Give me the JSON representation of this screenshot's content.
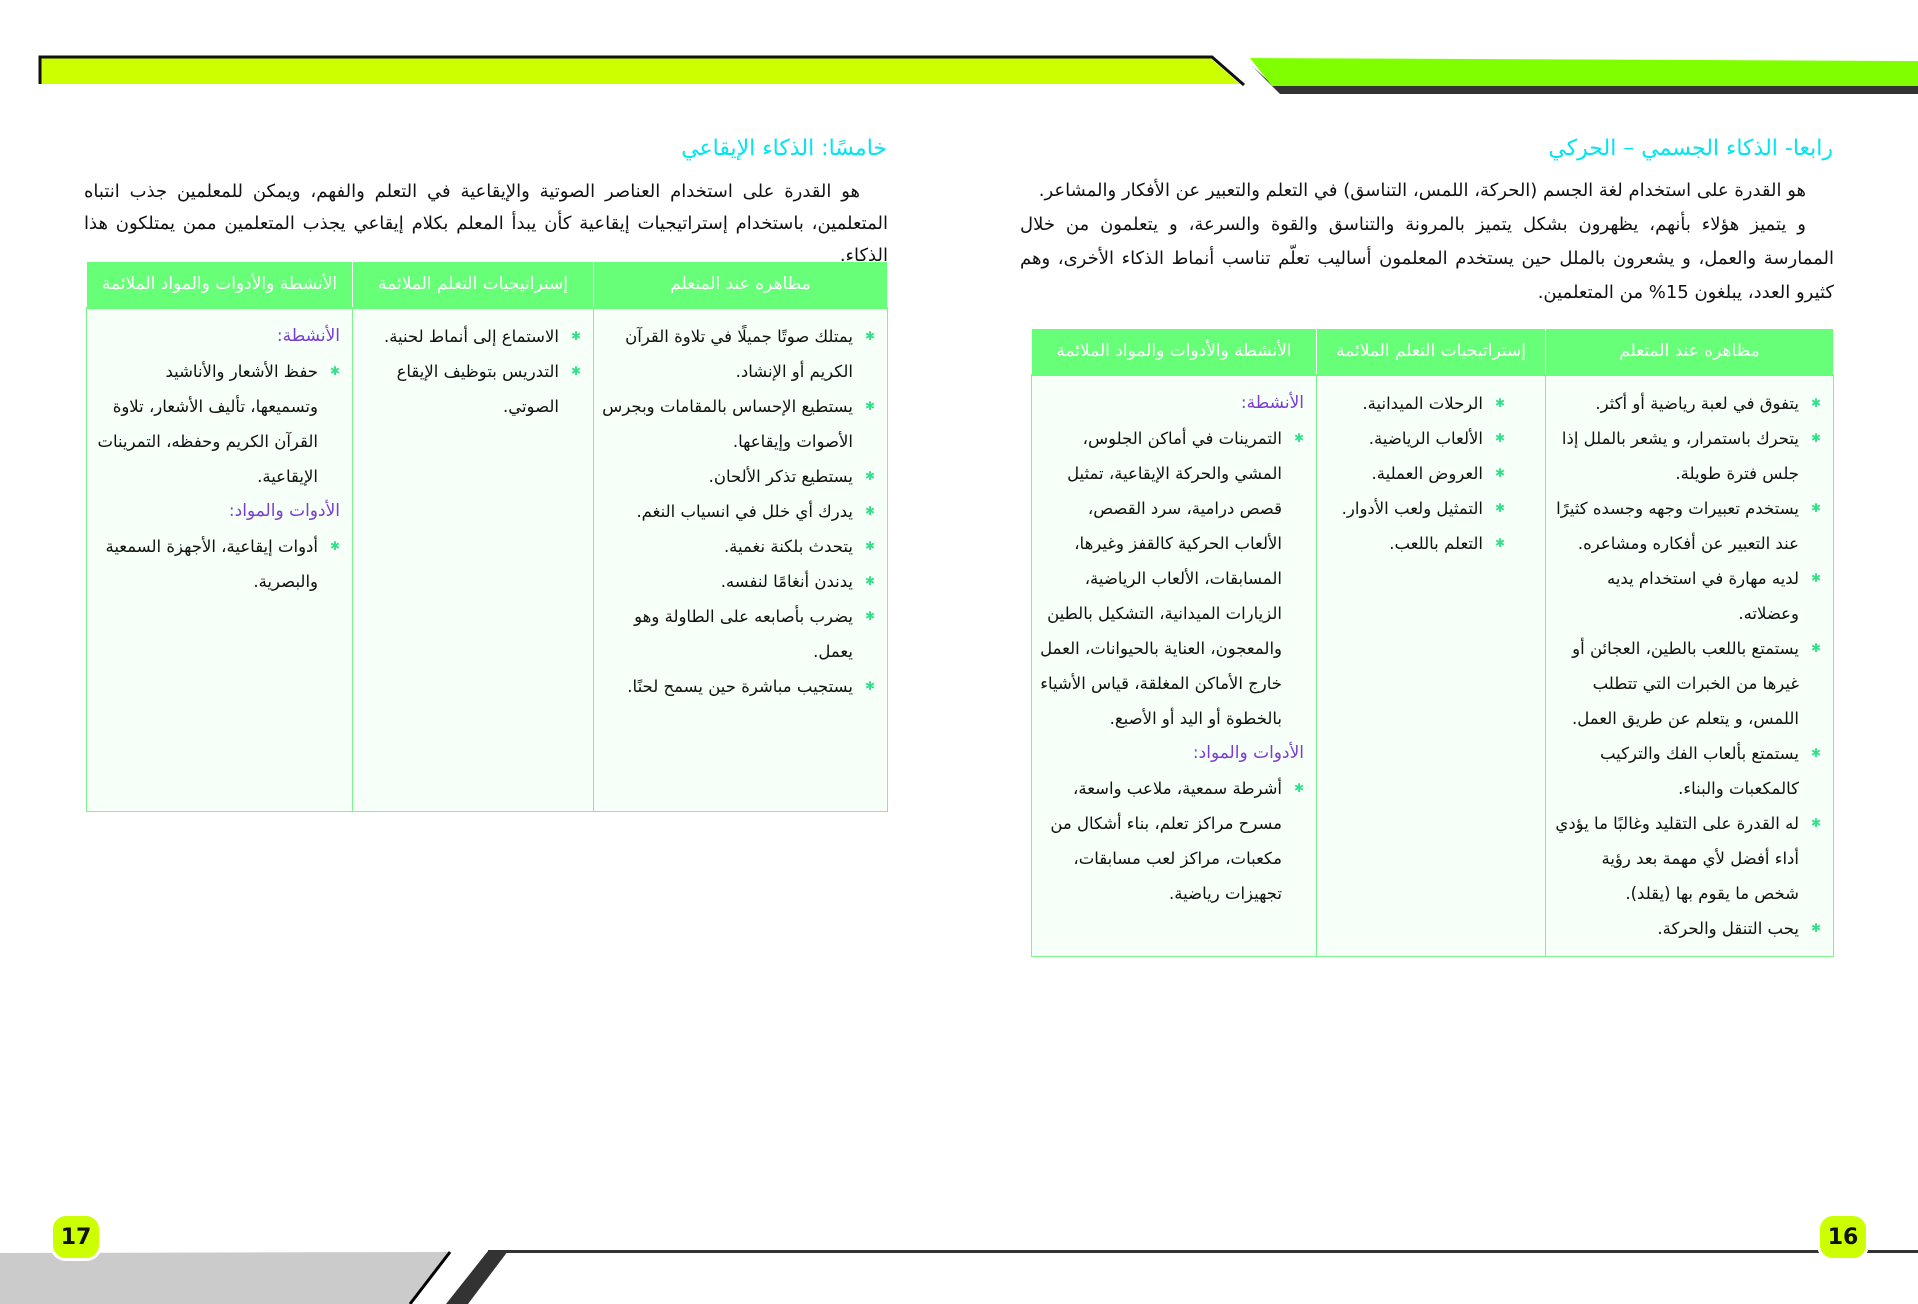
{
  "colors": {
    "heading": "#00e5f0",
    "table_header": "#66ff77",
    "subheading": "#7a3fd0",
    "bullet": "#33e08a",
    "page_badge": "#ccff00",
    "top_bar_left": "#ccff00",
    "top_bar_right": "#80ff00"
  },
  "bullet_icon": "star-bullet-icon",
  "right_page": {
    "page_number": "16",
    "heading": "رابعا- الذكاء الجسمي – الحركي",
    "paragraphs": [
      "هو القدرة على استخدام لغة الجسم (الحركة، اللمس، التناسق) في التعلم والتعبير عن الأفكار والمشاعر.",
      "و يتميز هؤلاء بأنهم، يظهرون بشكل يتميز بالمرونة والتناسق والقوة والسرعة، و يتعلمون من خلال الممارسة والعمل، و يشعرون بالملل حين يستخدم المعلمون أساليب تعلّم تناسب أنماط الذكاء الأخرى، وهم كثيرو العدد، يبلغون 15% من المتعلمين."
    ],
    "table": {
      "headers": [
        "مظاهره عند المتعلم",
        "إستراتيجيات التعلم الملائمة",
        "الأنشطة والأدوات والمواد الملائمة"
      ],
      "traits": [
        "يتفوق في لعبة رياضية أو أكثر.",
        "يتحرك باستمرار، و يشعر بالملل إذا جلس فترة طويلة.",
        "يستخدم تعبيرات وجهه وجسده كثيرًا عند التعبير عن أفكاره ومشاعره.",
        "لديه مهارة في استخدام يديه وعضلاته.",
        "يستمتع باللعب بالطين، العجائن أو غيرها من الخبرات التي تتطلب اللمس، و يتعلم عن طريق العمل.",
        "يستمتع بألعاب الفك والتركيب كالمكعبات والبناء.",
        "له القدرة على التقليد وغالبًا ما يؤدي أداء أفضل لأي مهمة بعد رؤية شخص ما يقوم بها (يقلد).",
        "يحب التنقل والحركة."
      ],
      "strategies": [
        "الرحلات الميدانية.",
        "الألعاب الرياضية.",
        "العروض العملية.",
        "التمثيل ولعب الأدوار.",
        "التعلم باللعب."
      ],
      "activities_label": "الأنشطة:",
      "activities": [
        "التمرينات في أماكن الجلوس، المشي والحركة الإيقاعية، تمثيل قصص درامية، سرد القصص، الألعاب الحركية كالقفز وغيرها، المسابقات، الألعاب الرياضية، الزيارات الميدانية، التشكيل بالطين والمعجون، العناية بالحيوانات، العمل خارج الأماكن المغلقة، قياس الأشياء بالخطوة أو اليد أو الأصبع."
      ],
      "tools_label": "الأدوات والمواد:",
      "tools": [
        "أشرطة سمعية، ملاعب واسعة، مسرح مراكز تعلم، بناء أشكال من مكعبات، مراكز لعب مسابقات، تجهيزات رياضية."
      ]
    }
  },
  "left_page": {
    "page_number": "17",
    "heading": "خامسًا: الذكاء الإيقاعي",
    "paragraphs": [
      "هو القدرة على استخدام العناصر الصوتية والإيقاعية في التعلم والفهم، ويمكن للمعلمين جذب انتباه المتعلمين، باستخدام إستراتيجيات إيقاعية كأن يبدأ المعلم بكلام إيقاعي يجذب المتعلمين ممن يمتلكون هذا الذكاء."
    ],
    "table": {
      "headers": [
        "مظاهره عند المتعلم",
        "إستراتيجيات التعلم الملائمة",
        "الأنشطة والأدوات والمواد الملائمة"
      ],
      "traits": [
        "يمتلك صوتًا جميلًا في تلاوة القرآن الكريم أو الإنشاد.",
        "يستطيع الإحساس بالمقامات وبجرس الأصوات وإيقاعها.",
        "يستطيع تذكر الألحان.",
        "يدرك أي خلل في انسياب النغم.",
        "يتحدث بلكنة نغمية.",
        "يدندن أنغامًا لنفسه.",
        "يضرب بأصابعه على الطاولة وهو يعمل.",
        "يستجيب مباشرة حين يسمح لحنًا."
      ],
      "strategies": [
        "الاستماع إلى أنماط لحنية.",
        "التدريس بتوظيف الإيقاع الصوتي."
      ],
      "activities_label": "الأنشطة:",
      "activities": [
        "حفظ الأشعار والأناشيد وتسميعها، تأليف الأشعار، تلاوة القرآن الكريم وحفظه، التمرينات الإيقاعية."
      ],
      "tools_label": "الأدوات والمواد:",
      "tools": [
        "أدوات إيقاعية، الأجهزة السمعية والبصرية."
      ]
    }
  }
}
